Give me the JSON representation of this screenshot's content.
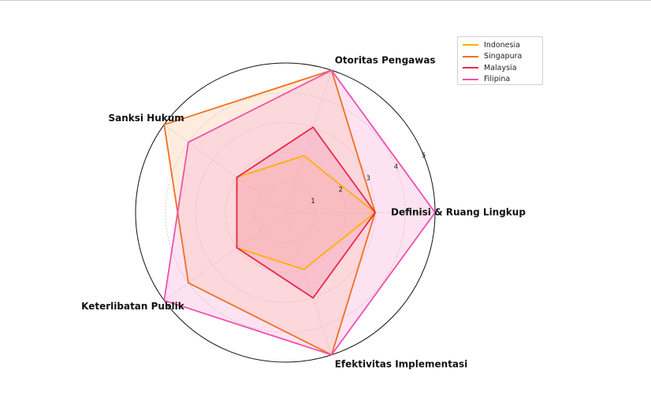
{
  "chart_data": {
    "type": "radar",
    "title": "",
    "axes": [
      "Definisi & Ruang Lingkup",
      "Otoritas Pengawas",
      "Sanksi Hukum",
      "Keterlibatan Publik",
      "Efektivitas Implementasi"
    ],
    "rlim": [
      0,
      5
    ],
    "rticks": [
      1,
      2,
      3,
      4,
      5
    ],
    "grid": true,
    "legend_position": "top-right",
    "series": [
      {
        "name": "Indonesia",
        "values": [
          3,
          2,
          2,
          2,
          2
        ],
        "color": "#FFB000",
        "fill": "#FFD27A"
      },
      {
        "name": "Singapura",
        "values": [
          3,
          5,
          5,
          4,
          5
        ],
        "color": "#F07020",
        "fill": "#FBC89C"
      },
      {
        "name": "Malaysia",
        "values": [
          3,
          3,
          2,
          2,
          3
        ],
        "color": "#E8284E",
        "fill": "#F08AA0"
      },
      {
        "name": "Filipina",
        "values": [
          5,
          5,
          4,
          5,
          5
        ],
        "color": "#F050B0",
        "fill": "#F8A8D8"
      }
    ]
  }
}
